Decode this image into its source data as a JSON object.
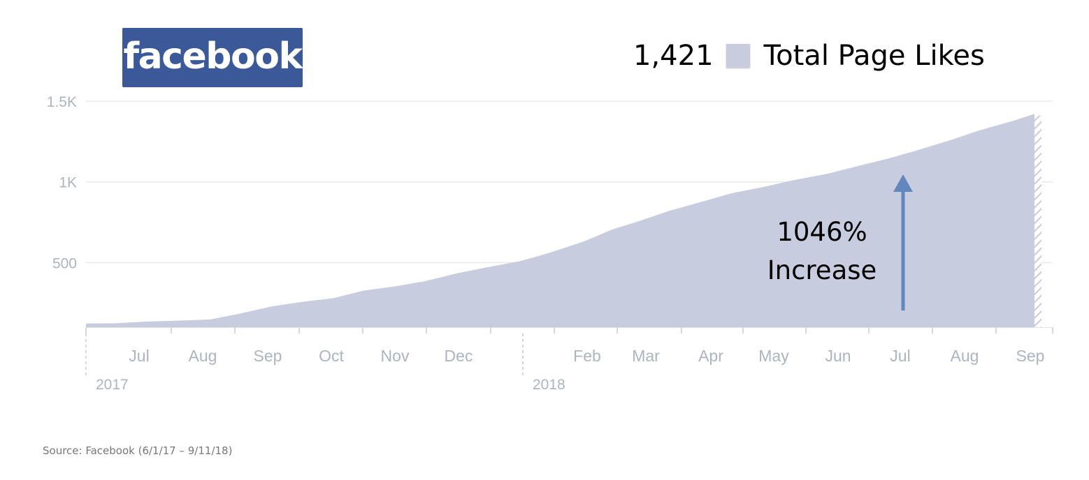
{
  "logo": {
    "text": "facebook",
    "color": "#3b5998"
  },
  "legend": {
    "value": "1,421",
    "label": "Total Page Likes",
    "swatch_color": "#c7cddf"
  },
  "source": "Source: Facebook (6/1/17 – 9/11/18)",
  "chart_data": {
    "type": "area",
    "title": "",
    "xlabel": "",
    "ylabel": "",
    "ylim": [
      0,
      1500
    ],
    "y_ticks": [
      {
        "label": "1.5K",
        "value": 1500
      },
      {
        "label": "1K",
        "value": 1000
      },
      {
        "label": "500",
        "value": 500
      }
    ],
    "x_ticks": [
      "Jul",
      "Aug",
      "Sep",
      "Oct",
      "Nov",
      "Dec",
      "Feb",
      "Mar",
      "Apr",
      "May",
      "Jun",
      "Jul",
      "Aug",
      "Sep"
    ],
    "year_labels": [
      "2017",
      "2018"
    ],
    "grid": true,
    "fill_color": "#c7cddf",
    "series": [
      {
        "x": [
          "2017-06-01",
          "2017-06-15",
          "2017-07-01",
          "2017-07-15",
          "2017-08-01",
          "2017-08-15",
          "2017-09-01",
          "2017-09-15",
          "2017-10-01",
          "2017-10-15",
          "2017-11-01",
          "2017-11-15",
          "2017-12-01",
          "2017-12-15",
          "2018-01-01",
          "2018-01-15",
          "2018-02-01",
          "2018-02-15",
          "2018-03-01",
          "2018-03-15",
          "2018-04-01",
          "2018-04-15",
          "2018-05-01",
          "2018-05-15",
          "2018-06-01",
          "2018-06-15",
          "2018-07-01",
          "2018-07-15",
          "2018-08-01",
          "2018-08-15",
          "2018-09-01",
          "2018-09-11"
        ],
        "y": [
          123,
          124,
          135,
          140,
          148,
          182,
          230,
          256,
          280,
          325,
          355,
          385,
          435,
          470,
          510,
          560,
          630,
          705,
          760,
          820,
          880,
          930,
          970,
          1010,
          1050,
          1095,
          1145,
          1195,
          1260,
          1320,
          1380,
          1421
        ]
      }
    ],
    "annotation": {
      "line1": "1046%",
      "line2": "Increase",
      "arrow_color": "#6287bc"
    }
  }
}
